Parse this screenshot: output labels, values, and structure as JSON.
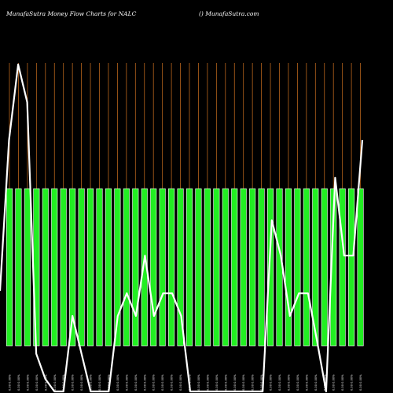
{
  "header": {
    "left": "MunafaSutra  Money Flow  Charts for NALC",
    "right": "() MunafaSutra.com"
  },
  "colors": {
    "background": "#000000",
    "bar": "#22ee22",
    "bar_border": "#ffffff",
    "grid": "#b8651c",
    "line": "#ffffff"
  },
  "chart_data": {
    "type": "bar",
    "title": "MunafaSutra  Money Flow  Charts for NALC",
    "grid": true,
    "categories": [
      "0.00 0.00%",
      "0.00 0.00%",
      "0.00 0.00%",
      "0.00 0.00%",
      "0.00 0.00%",
      "0.00 0.00%",
      "0.00 0.00%",
      "0.00 0.00%",
      "0.00 0.00%",
      "0.00 0.00%",
      "0.00 0.00%",
      "0.00 0.00%",
      "0.00 0.00%",
      "0.00 0.00%",
      "0.00 0.00%",
      "0.00 0.00%",
      "0.00 0.00%",
      "0.00 0.00%",
      "0.00 0.00%",
      "0.00 0.00%",
      "0.00 0.00%",
      "0.00 0.00%",
      "0.00 0.00%",
      "0.00 0.00%",
      "0.00 0.00%",
      "0.00 0.00%",
      "0.00 0.00%",
      "0.00 0.00%",
      "0.00 0.00%",
      "0.00 0.00%",
      "0.00 0.00%",
      "0.00 0.00%",
      "0.00 0.00%",
      "0.00 0.00%",
      "0.00 0.00%",
      "0.00 0.00%",
      "0.00 0.00%",
      "0.00 0.00%",
      "0.00 0.00%",
      "0.00 0.00%"
    ],
    "bar_values": [
      1,
      1,
      1,
      1,
      1,
      1,
      1,
      1,
      1,
      1,
      1,
      1,
      1,
      1,
      1,
      1,
      1,
      1,
      1,
      1,
      1,
      1,
      1,
      1,
      1,
      1,
      1,
      1,
      1,
      1,
      1,
      1,
      1,
      1,
      1,
      1,
      1,
      1,
      1,
      1
    ],
    "line_values": [
      0.1,
      0.7,
      1.0,
      0.85,
      -0.15,
      -0.25,
      -0.3,
      -0.3,
      0.0,
      -0.15,
      -0.3,
      -0.3,
      -0.3,
      0.0,
      0.09,
      0.0,
      0.24,
      0.0,
      0.09,
      0.09,
      0.0,
      -0.3,
      -0.3,
      -0.3,
      -0.3,
      -0.3,
      -0.3,
      -0.3,
      -0.3,
      -0.3,
      0.38,
      0.24,
      0.0,
      0.09,
      0.09,
      -0.1,
      -0.3,
      0.55,
      0.24,
      0.24,
      0.7
    ],
    "ylim": [
      -0.3,
      1.0
    ]
  }
}
